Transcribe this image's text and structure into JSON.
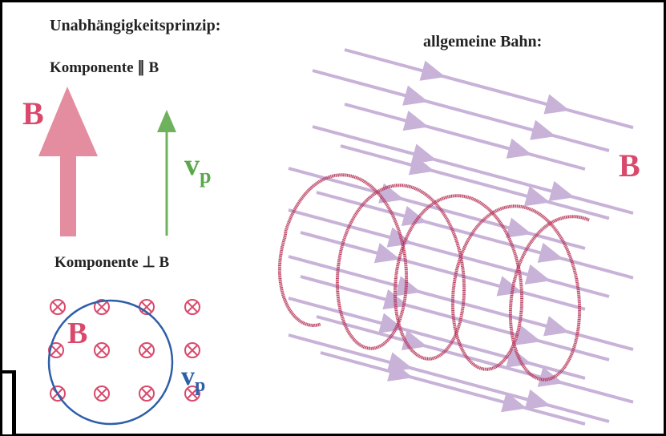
{
  "title": "Unabhängigkeitsprinzip:",
  "parallel": {
    "label": "Komponente ∥ B",
    "field_label": "B",
    "velocity_label": "v",
    "velocity_subscript": "p"
  },
  "perpendicular": {
    "label": "Komponente ⊥ B",
    "field_label": "B",
    "velocity_label": "v",
    "velocity_subscript": "p"
  },
  "general": {
    "label": "allgemeine Bahn:",
    "field_label": "B"
  }
}
